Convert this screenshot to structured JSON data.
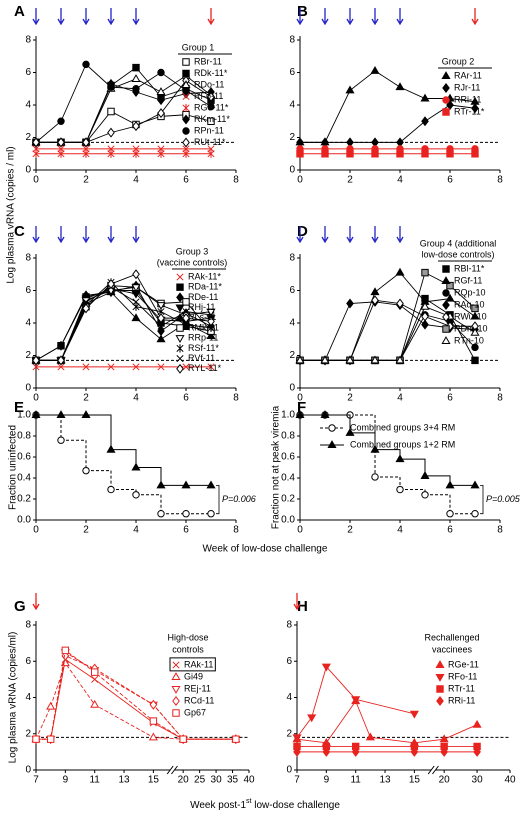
{
  "shared_labels": {
    "ylabel_top": "Log plasma vRNA (copies / ml)",
    "xlabel_middle": "Week of low-dose challenge",
    "xlabel_bottom": {
      "text": "Week post-1",
      "sup": "st",
      "rest": " low-dose challenge"
    }
  },
  "chart_data": [
    {
      "type": "line",
      "panel_label": "A",
      "legend_title": [
        "Group 1"
      ],
      "xlim": [
        0,
        8
      ],
      "ylim": [
        0,
        8
      ],
      "xticks": [
        0,
        2,
        4,
        6,
        8
      ],
      "yticks": [
        0,
        2,
        4,
        6,
        8
      ],
      "threshold": 1.7,
      "arrows": [
        {
          "x": [
            0,
            1,
            2,
            3,
            4
          ],
          "color": "#2323c8"
        },
        {
          "x": [
            7
          ],
          "color": "#e8231f"
        }
      ],
      "x": [
        0,
        1,
        2,
        3,
        4,
        5,
        6,
        7
      ],
      "series": [
        {
          "name": "RBr-11",
          "color": "#000000",
          "marker": "square-open",
          "values": [
            1.7,
            1.7,
            1.7,
            3.6,
            2.8,
            3.3,
            3.4,
            3.0
          ]
        },
        {
          "name": "RDk-11*",
          "color": "#000000",
          "marker": "square",
          "values": [
            1.7,
            1.7,
            1.7,
            5.2,
            6.3,
            4.5,
            5.0,
            4.3
          ]
        },
        {
          "name": "RDo-11",
          "color": "#000000",
          "marker": "triangle-open",
          "values": [
            1.7,
            1.7,
            1.7,
            5.0,
            5.6,
            4.8,
            5.8,
            4.6
          ]
        },
        {
          "name": "RFo-11",
          "color": "#e8231f",
          "marker": "x",
          "values": [
            1.3,
            1.3,
            1.3,
            1.3,
            1.3,
            1.3,
            1.3,
            1.3
          ]
        },
        {
          "name": "RGe-11*",
          "color": "#e8231f",
          "marker": "star",
          "values": [
            1.0,
            1.0,
            1.0,
            1.0,
            1.0,
            1.0,
            1.0,
            1.0
          ]
        },
        {
          "name": "RKm-11*",
          "color": "#000000",
          "marker": "diamond",
          "values": [
            1.7,
            1.7,
            1.7,
            5.3,
            4.8,
            4.3,
            4.7,
            4.8
          ]
        },
        {
          "name": "RPn-11",
          "color": "#000000",
          "marker": "circle",
          "values": [
            1.7,
            3.0,
            6.5,
            5.1,
            5.0,
            6.0,
            4.9,
            3.9
          ]
        },
        {
          "name": "RUt-11*",
          "color": "#000000",
          "marker": "diamond-open",
          "values": [
            1.7,
            1.7,
            1.7,
            2.3,
            2.7,
            3.5,
            5.5,
            4.5
          ]
        }
      ]
    },
    {
      "type": "line",
      "panel_label": "B",
      "legend_title": [
        "Group 2"
      ],
      "xlim": [
        0,
        8
      ],
      "ylim": [
        0,
        8
      ],
      "xticks": [
        0,
        2,
        4,
        6,
        8
      ],
      "yticks": [
        0,
        2,
        4,
        6,
        8
      ],
      "threshold": 1.7,
      "arrows": [
        {
          "x": [
            0,
            1,
            2,
            3,
            4
          ],
          "color": "#2323c8"
        },
        {
          "x": [
            7
          ],
          "color": "#e8231f"
        }
      ],
      "x": [
        0,
        1,
        2,
        3,
        4,
        5,
        6,
        7
      ],
      "series": [
        {
          "name": "RAr-11",
          "color": "#000000",
          "marker": "triangle",
          "values": [
            1.7,
            1.7,
            4.9,
            6.1,
            5.1,
            4.4,
            4.4,
            4.2
          ]
        },
        {
          "name": "RJr-11",
          "color": "#000000",
          "marker": "diamond",
          "values": [
            1.7,
            1.7,
            1.7,
            1.7,
            1.7,
            3.0,
            4.0,
            3.8
          ]
        },
        {
          "name": "RRi-11",
          "color": "#e8231f",
          "marker": "circle",
          "values": [
            1.3,
            1.3,
            1.3,
            1.3,
            1.3,
            1.3,
            1.3,
            1.3
          ]
        },
        {
          "name": "RTr-11*",
          "color": "#e8231f",
          "marker": "square",
          "values": [
            1.0,
            1.0,
            1.0,
            1.0,
            1.0,
            1.0,
            1.0,
            1.0
          ]
        }
      ]
    },
    {
      "type": "line",
      "panel_label": "C",
      "legend_title": [
        "Group 3",
        "(vaccine controls)"
      ],
      "xlim": [
        0,
        8
      ],
      "ylim": [
        0,
        8
      ],
      "xticks": [
        0,
        2,
        4,
        6,
        8
      ],
      "yticks": [
        0,
        2,
        4,
        6,
        8
      ],
      "threshold": 1.7,
      "arrows": [
        {
          "x": [
            0,
            1,
            2,
            3,
            4
          ],
          "color": "#2323c8"
        }
      ],
      "x": [
        0,
        1,
        2,
        3,
        4,
        5,
        6,
        7
      ],
      "series": [
        {
          "name": "RAk-11*",
          "color": "#e8231f",
          "marker": "x",
          "values": [
            1.3,
            1.3,
            1.3,
            1.3,
            1.3,
            1.3,
            1.3,
            1.3
          ]
        },
        {
          "name": "RDa-11*",
          "color": "#000000",
          "marker": "square",
          "values": [
            1.7,
            2.6,
            5.6,
            6.0,
            6.0,
            4.0,
            3.8,
            3.5
          ]
        },
        {
          "name": "RDe-11",
          "color": "#000000",
          "marker": "diamond",
          "values": [
            1.7,
            2.6,
            5.7,
            5.9,
            6.3,
            3.5,
            4.6,
            3.8
          ]
        },
        {
          "name": "RHj-11",
          "color": "#000000",
          "marker": "triangle-down",
          "values": [
            1.7,
            1.7,
            5.5,
            6.1,
            5.8,
            4.2,
            4.1,
            4.3
          ]
        },
        {
          "name": "RLs-11",
          "color": "#000000",
          "marker": "triangle",
          "values": [
            1.7,
            1.7,
            5.2,
            5.9,
            4.3,
            3.0,
            4.0,
            3.2
          ]
        },
        {
          "name": "RMk-11",
          "color": "#000000",
          "marker": "square-open",
          "values": [
            1.7,
            1.7,
            5.0,
            6.3,
            6.2,
            5.2,
            5.3,
            3.5
          ]
        },
        {
          "name": "RRp-11",
          "color": "#000000",
          "marker": "triangle-down-open",
          "values": [
            1.7,
            1.7,
            5.4,
            6.0,
            6.2,
            5.1,
            4.5,
            4.7
          ]
        },
        {
          "name": "RSf-11*",
          "color": "#000000",
          "marker": "star",
          "values": [
            1.7,
            1.7,
            5.1,
            6.5,
            5.0,
            4.7,
            3.9,
            3.7
          ]
        },
        {
          "name": "RVf-11",
          "color": "#000000",
          "marker": "x",
          "values": [
            1.7,
            1.7,
            5.3,
            6.2,
            5.3,
            3.8,
            4.7,
            4.5
          ]
        },
        {
          "name": "RYL-11*",
          "color": "#000000",
          "marker": "diamond-open",
          "values": [
            1.7,
            1.7,
            4.9,
            6.4,
            7.0,
            4.3,
            4.3,
            4.1
          ]
        }
      ]
    },
    {
      "type": "line",
      "panel_label": "D",
      "legend_title": [
        "Group 4 (additional",
        "low-dose controls)"
      ],
      "xlim": [
        0,
        8
      ],
      "ylim": [
        0,
        8
      ],
      "xticks": [
        0,
        2,
        4,
        6,
        8
      ],
      "yticks": [
        0,
        2,
        4,
        6,
        8
      ],
      "threshold": 1.7,
      "arrows": [
        {
          "x": [
            0,
            1,
            2,
            3,
            4
          ],
          "color": "#2323c8"
        }
      ],
      "x": [
        0,
        1,
        2,
        3,
        4,
        5,
        6,
        7
      ],
      "series": [
        {
          "name": "RBl-11*",
          "color": "#000000",
          "marker": "square",
          "values": [
            1.7,
            1.7,
            1.7,
            1.7,
            1.7,
            5.5,
            4.5,
            1.7
          ]
        },
        {
          "name": "RGf-11",
          "color": "#000000",
          "marker": "triangle",
          "values": [
            1.7,
            1.7,
            1.7,
            5.9,
            7.1,
            5.3,
            5.5,
            4.4
          ]
        },
        {
          "name": "RQp-10",
          "color": "#000000",
          "marker": "circle",
          "values": [
            1.7,
            1.7,
            1.7,
            1.7,
            1.7,
            4.5,
            4.1,
            2.5
          ]
        },
        {
          "name": "RAq-10",
          "color": "#000000",
          "marker": "diamond",
          "values": [
            1.7,
            1.7,
            5.2,
            5.3,
            5.1,
            3.9,
            3.7,
            3.6
          ]
        },
        {
          "name": "RWu-10",
          "color": "#000000",
          "marker": "diamond-open",
          "values": [
            1.7,
            1.7,
            1.7,
            5.4,
            5.2,
            4.4,
            3.8,
            3.8
          ]
        },
        {
          "name": "RDm-10",
          "color": "#000000",
          "marker": "square-grey",
          "values": [
            1.7,
            1.7,
            1.7,
            1.7,
            1.7,
            7.1,
            6.3,
            4.9
          ]
        },
        {
          "name": "RTn-10",
          "color": "#000000",
          "marker": "triangle-open",
          "values": [
            1.7,
            1.7,
            1.7,
            1.7,
            1.7,
            5.0,
            4.4,
            3.4
          ]
        }
      ]
    },
    {
      "type": "step",
      "panel_label": "E",
      "ylabel": "Fraction uninfected",
      "annotation": "P=0.006",
      "xlim": [
        0,
        8
      ],
      "ylim": [
        0,
        1
      ],
      "xticks": [
        0,
        2,
        4,
        6,
        8
      ],
      "yticks": [
        {
          "value": 0,
          "label": "0.0"
        },
        {
          "value": 0.2,
          "label": "0.2"
        },
        {
          "value": 0.4,
          "label": "0.4"
        },
        {
          "value": 0.6,
          "label": "0.6"
        },
        {
          "value": 0.8,
          "label": "0.8"
        },
        {
          "value": 1,
          "label": "1.0"
        }
      ],
      "x": [
        0,
        1,
        2,
        3,
        4,
        5,
        6,
        7
      ],
      "series": [
        {
          "color": "#000000",
          "marker": "circle-open",
          "dash": true,
          "values": [
            1.0,
            0.76,
            0.47,
            0.29,
            0.24,
            0.06,
            0.06,
            0.06
          ]
        },
        {
          "color": "#000000",
          "marker": "triangle",
          "values": [
            1.0,
            1.0,
            1.0,
            0.67,
            0.5,
            0.33,
            0.33,
            0.33
          ]
        }
      ]
    },
    {
      "type": "step",
      "panel_label": "F",
      "ylabel": "Fraction not at peak viremia",
      "annotation": "P=0.005",
      "xlim": [
        0,
        8
      ],
      "ylim": [
        0,
        1
      ],
      "xticks": [
        0,
        2,
        4,
        6,
        8
      ],
      "yticks": [
        {
          "value": 0,
          "label": "0.0"
        },
        {
          "value": 0.2,
          "label": "0.2"
        },
        {
          "value": 0.4,
          "label": "0.4"
        },
        {
          "value": 0.6,
          "label": "0.6"
        },
        {
          "value": 0.8,
          "label": "0.8"
        },
        {
          "value": 1,
          "label": "1.0"
        }
      ],
      "x": [
        0,
        1,
        2,
        3,
        4,
        5,
        6,
        7
      ],
      "series": [
        {
          "name": "Combined groups 3+4 RM",
          "color": "#000000",
          "marker": "circle-open",
          "dash": true,
          "values": [
            1.0,
            1.0,
            1.0,
            0.41,
            0.29,
            0.24,
            0.06,
            0.06
          ]
        },
        {
          "name": "Combined groups 1+2 RM",
          "color": "#000000",
          "marker": "triangle",
          "values": [
            1.0,
            1.0,
            0.83,
            0.67,
            0.58,
            0.42,
            0.33,
            0.33
          ]
        }
      ]
    },
    {
      "type": "line",
      "panel_label": "G",
      "ylabel": "Log plasma vRNA (copies/ml)",
      "legend_title": [
        "High-dose",
        "controls"
      ],
      "xlim": [
        7,
        40
      ],
      "xbreak": [
        16,
        18
      ],
      "ylim": [
        0,
        8
      ],
      "xticks": [
        7,
        9,
        11,
        13,
        15,
        20,
        25,
        30,
        35,
        40
      ],
      "yticks": [
        0,
        2,
        4,
        6,
        8
      ],
      "threshold": 1.8,
      "arrows": [
        {
          "x": [
            7
          ],
          "color": "#e8231f"
        }
      ],
      "series": [
        {
          "name": "RAk-11",
          "color": "#e8231f",
          "marker": "x",
          "boxed": true,
          "x": [
            7,
            8,
            9,
            11,
            15,
            20,
            36
          ],
          "values": [
            1.7,
            1.7,
            6.1,
            5.0,
            2.6,
            1.7,
            1.7
          ]
        },
        {
          "name": "Gi49",
          "color": "#e8231f",
          "marker": "triangle-open",
          "dash": true,
          "x": [
            7,
            8,
            9,
            11,
            15,
            20,
            36
          ],
          "values": [
            1.7,
            3.5,
            5.9,
            3.6,
            1.8,
            1.7,
            1.7
          ]
        },
        {
          "name": "REj-11",
          "color": "#e8231f",
          "marker": "triangle-down-open",
          "dash": true,
          "x": [
            7,
            8,
            9,
            11,
            15,
            20,
            36
          ],
          "values": [
            1.7,
            1.7,
            6.5,
            5.5,
            3.6,
            1.7,
            1.7
          ]
        },
        {
          "name": "RCd-11",
          "color": "#e8231f",
          "marker": "diamond-open",
          "dash": true,
          "x": [
            7,
            8,
            9,
            11,
            15,
            20,
            36
          ],
          "values": [
            1.7,
            1.7,
            6.3,
            5.6,
            3.6,
            1.7,
            1.7
          ]
        },
        {
          "name": "Gp67",
          "color": "#e8231f",
          "marker": "square-open",
          "dash": true,
          "x": [
            7,
            8,
            9,
            11,
            15,
            20,
            36
          ],
          "values": [
            1.7,
            1.7,
            6.6,
            5.4,
            2.7,
            1.7,
            1.7
          ]
        }
      ]
    },
    {
      "type": "line",
      "panel_label": "H",
      "legend_title": [
        "Rechallenged",
        "vaccinees"
      ],
      "xlim": [
        7,
        40
      ],
      "xbreak": [
        16,
        18
      ],
      "ylim": [
        0,
        8
      ],
      "xticks": [
        7,
        9,
        11,
        13,
        15,
        20,
        30,
        40
      ],
      "yticks": [
        0,
        2,
        4,
        6,
        8
      ],
      "threshold": 1.8,
      "arrows": [
        {
          "x": [
            7
          ],
          "color": "#e8231f"
        }
      ],
      "series": [
        {
          "name": "RGe-11",
          "color": "#e8231f",
          "marker": "triangle",
          "x": [
            7,
            9,
            11,
            12,
            15,
            20,
            30
          ],
          "values": [
            1.7,
            1.5,
            3.8,
            1.8,
            1.5,
            1.7,
            2.5
          ]
        },
        {
          "name": "RFo-11",
          "color": "#e8231f",
          "marker": "triangle-down",
          "x": [
            7,
            8,
            9,
            11,
            15
          ],
          "values": [
            1.8,
            2.9,
            5.7,
            3.9,
            3.1
          ]
        },
        {
          "name": "RTr-11",
          "color": "#e8231f",
          "marker": "square",
          "x": [
            7,
            9,
            11,
            15,
            20,
            30
          ],
          "values": [
            1.3,
            1.3,
            1.3,
            1.3,
            1.3,
            1.3
          ]
        },
        {
          "name": "RRi-11",
          "color": "#e8231f",
          "marker": "diamond",
          "x": [
            7,
            9,
            11,
            15,
            20,
            30
          ],
          "values": [
            1.0,
            1.0,
            1.0,
            1.0,
            1.0,
            1.0
          ]
        }
      ]
    }
  ]
}
